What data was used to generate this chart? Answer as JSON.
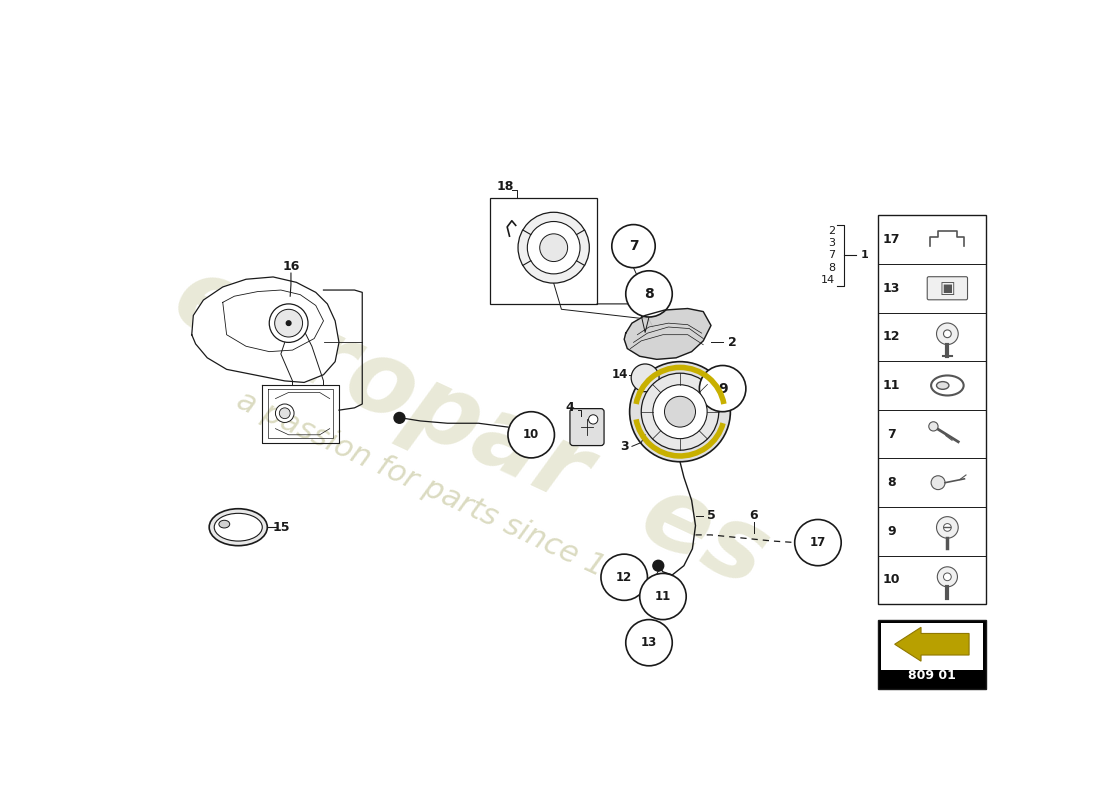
{
  "bg_color": "#ffffff",
  "line_color": "#1a1a1a",
  "mid_line_color": "#555555",
  "light_line_color": "#888888",
  "very_light": "#cccccc",
  "watermark_color1": "#d8d8b8",
  "watermark_color2": "#c8c8a0",
  "page_code": "809 01",
  "right_panel_nums": [
    17,
    13,
    12,
    11,
    7,
    8,
    9,
    10
  ],
  "right_list_nums": [
    "2",
    "3",
    "7",
    "8",
    "14"
  ],
  "arrow_gold": "#b8a000",
  "arrow_gold_light": "#d4bc00"
}
